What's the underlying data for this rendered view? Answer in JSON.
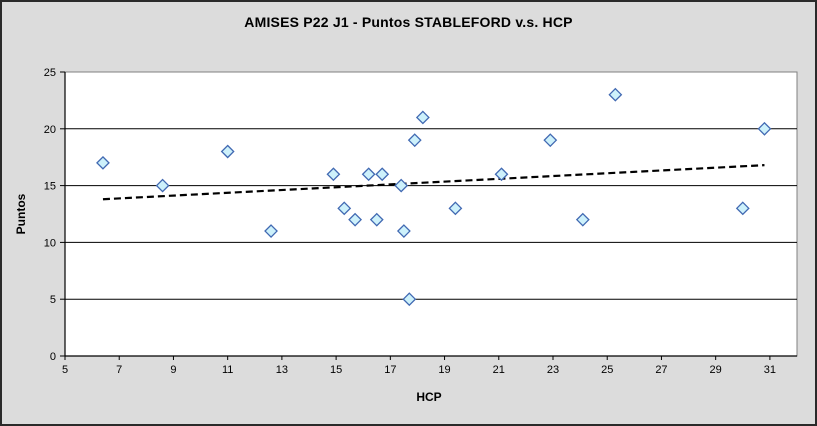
{
  "colors": {
    "figure_background": "#dcdcdc",
    "figure_border": "#2a2a2a",
    "plot_background": "#ffffff",
    "plot_border": "#808080",
    "gridline": "#000000",
    "axis": "#000000",
    "tick_text": "#000000",
    "marker_fill": "#cdf1fb",
    "marker_stroke": "#4169b2",
    "trendline": "#000000"
  },
  "chart_data": {
    "type": "scatter",
    "title": "AMISES P22 J1 - Puntos STABLEFORD v.s. HCP",
    "xlabel": "HCP",
    "ylabel": "Puntos",
    "xlim": [
      5,
      32
    ],
    "ylim": [
      0,
      25
    ],
    "x_ticks": [
      5,
      7,
      9,
      11,
      13,
      15,
      17,
      19,
      21,
      23,
      25,
      27,
      29,
      31
    ],
    "y_ticks": [
      0,
      5,
      10,
      15,
      20,
      25
    ],
    "grid": "horizontal gridlines on",
    "legend_position": "none",
    "marker": "diamond",
    "points": [
      {
        "x": 6.4,
        "y": 17
      },
      {
        "x": 8.6,
        "y": 15
      },
      {
        "x": 11.0,
        "y": 18
      },
      {
        "x": 12.6,
        "y": 11
      },
      {
        "x": 14.9,
        "y": 16
      },
      {
        "x": 15.3,
        "y": 13
      },
      {
        "x": 15.7,
        "y": 12
      },
      {
        "x": 16.2,
        "y": 16
      },
      {
        "x": 16.5,
        "y": 12
      },
      {
        "x": 16.7,
        "y": 16
      },
      {
        "x": 17.4,
        "y": 15
      },
      {
        "x": 17.5,
        "y": 11
      },
      {
        "x": 17.7,
        "y": 5
      },
      {
        "x": 17.9,
        "y": 19
      },
      {
        "x": 18.2,
        "y": 21
      },
      {
        "x": 19.4,
        "y": 13
      },
      {
        "x": 21.1,
        "y": 16
      },
      {
        "x": 22.9,
        "y": 19
      },
      {
        "x": 24.1,
        "y": 12
      },
      {
        "x": 25.3,
        "y": 23
      },
      {
        "x": 30.0,
        "y": 13
      },
      {
        "x": 30.8,
        "y": 20
      }
    ],
    "trendline": {
      "style": "dashed",
      "x_start": 6.4,
      "y_start": 13.8,
      "x_end": 30.8,
      "y_end": 16.8
    }
  }
}
